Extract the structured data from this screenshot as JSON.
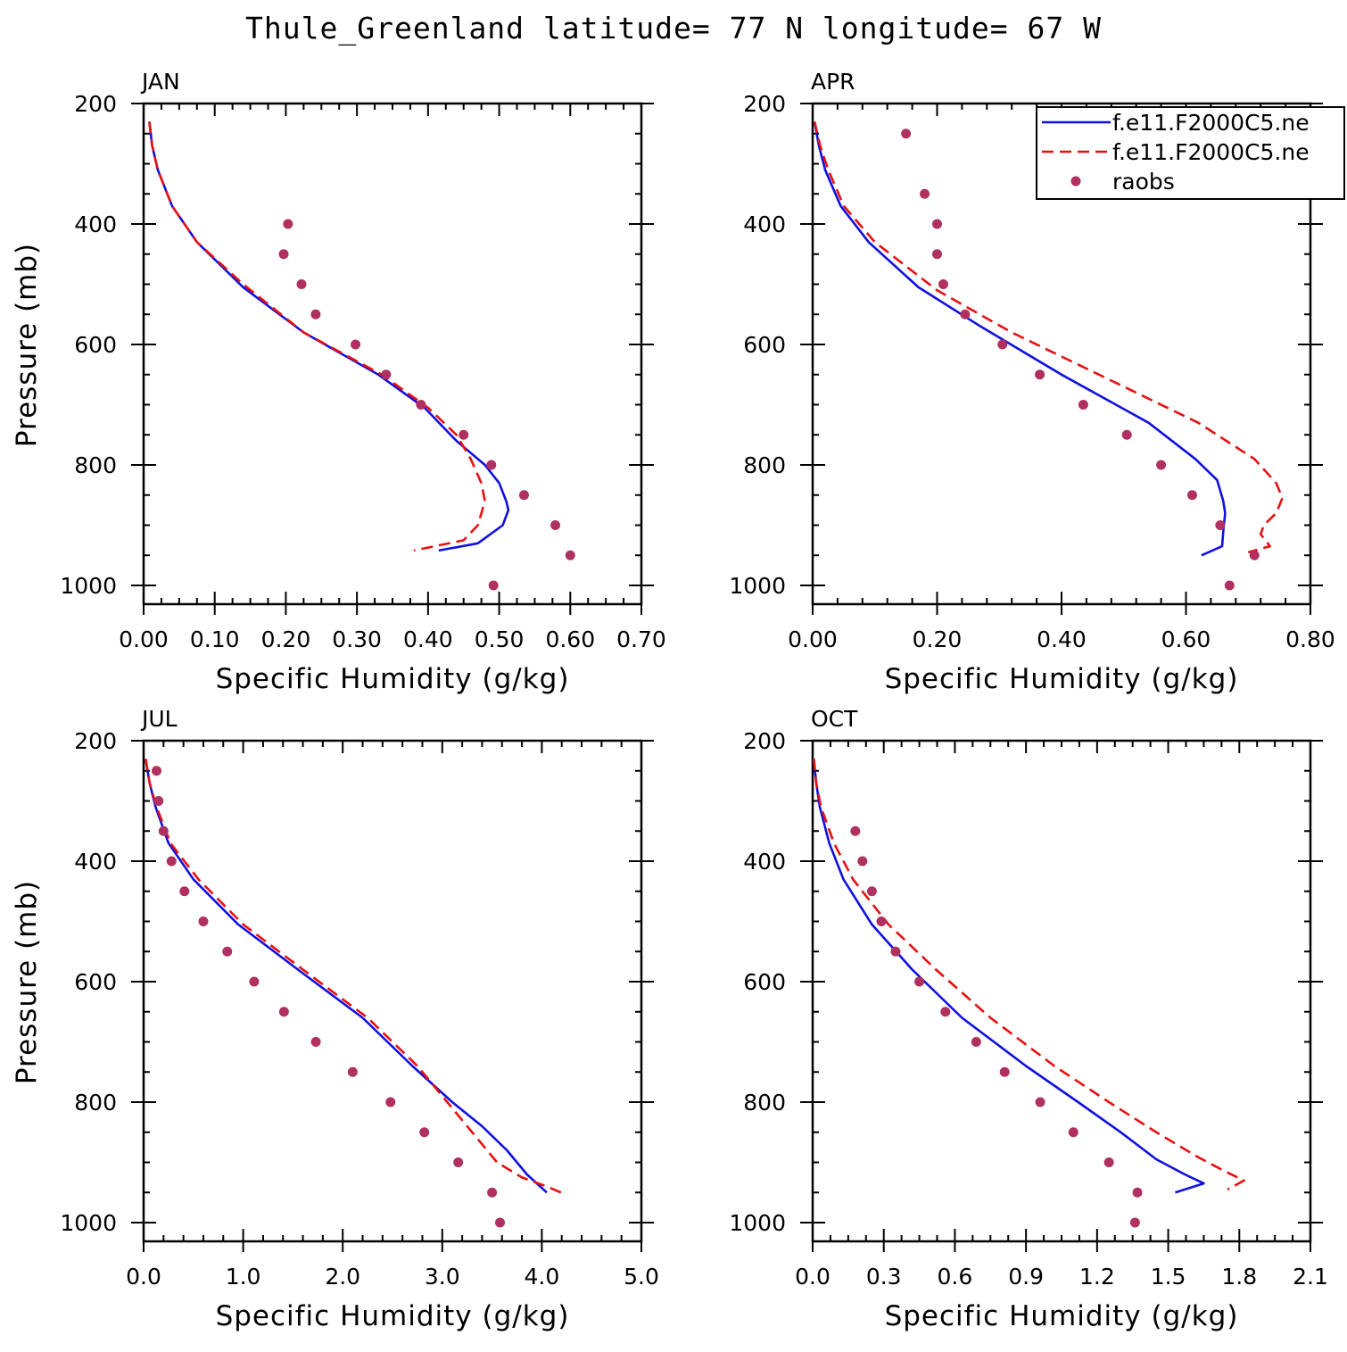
{
  "figure": {
    "title": "Thule_Greenland  latitude= 77 N longitude= 67 W"
  },
  "legend": {
    "entries": [
      {
        "label": "f.e11.F2000C5.ne",
        "style": "solid",
        "color": "#1010e0"
      },
      {
        "label": "f.e11.F2000C5.ne",
        "style": "dashed",
        "color": "#e81010"
      },
      {
        "label": "raobs",
        "style": "dot",
        "color": "#b03060"
      }
    ]
  },
  "chart_data": [
    {
      "type": "line",
      "title": "JAN",
      "xlabel": "Specific Humidity (g/kg)",
      "ylabel": "Pressure (mb)",
      "xlim": [
        0,
        0.7
      ],
      "ylim": [
        200,
        1000
      ],
      "xticks": [
        "0.00",
        "0.10",
        "0.20",
        "0.30",
        "0.40",
        "0.50",
        "0.60",
        "0.70"
      ],
      "yticks": [
        "200",
        "400",
        "600",
        "800",
        "1000"
      ],
      "series": [
        {
          "name": "f.e11.F2000C5.ne (solid)",
          "color": "#1010e0",
          "dash": false,
          "points": [
            [
              0.008,
              230
            ],
            [
              0.012,
              270
            ],
            [
              0.02,
              310
            ],
            [
              0.04,
              370
            ],
            [
              0.075,
              430
            ],
            [
              0.14,
              505
            ],
            [
              0.225,
              580
            ],
            [
              0.33,
              650
            ],
            [
              0.395,
              705
            ],
            [
              0.44,
              760
            ],
            [
              0.48,
              800
            ],
            [
              0.5,
              830
            ],
            [
              0.51,
              860
            ],
            [
              0.513,
              875
            ],
            [
              0.505,
              900
            ],
            [
              0.47,
              930
            ],
            [
              0.415,
              942
            ]
          ]
        },
        {
          "name": "f.e11.F2000C5.ne (dashed)",
          "color": "#e81010",
          "dash": true,
          "points": [
            [
              0.008,
              230
            ],
            [
              0.012,
              270
            ],
            [
              0.02,
              310
            ],
            [
              0.04,
              370
            ],
            [
              0.075,
              430
            ],
            [
              0.14,
              500
            ],
            [
              0.225,
              580
            ],
            [
              0.335,
              650
            ],
            [
              0.4,
              705
            ],
            [
              0.44,
              750
            ],
            [
              0.46,
              790
            ],
            [
              0.475,
              830
            ],
            [
              0.48,
              860
            ],
            [
              0.47,
              900
            ],
            [
              0.45,
              925
            ],
            [
              0.38,
              942
            ]
          ]
        },
        {
          "name": "raobs",
          "color": "#b03060",
          "markers": true,
          "points": [
            [
              0.203,
              400
            ],
            [
              0.197,
              450
            ],
            [
              0.222,
              500
            ],
            [
              0.242,
              550
            ],
            [
              0.298,
              600
            ],
            [
              0.341,
              650
            ],
            [
              0.39,
              700
            ],
            [
              0.45,
              750
            ],
            [
              0.489,
              800
            ],
            [
              0.535,
              850
            ],
            [
              0.579,
              900
            ],
            [
              0.6,
              950
            ],
            [
              0.492,
              1000
            ]
          ]
        }
      ]
    },
    {
      "type": "line",
      "title": "APR",
      "xlabel": "Specific Humidity (g/kg)",
      "ylabel": "",
      "xlim": [
        0,
        0.8
      ],
      "ylim": [
        200,
        1000
      ],
      "xticks": [
        "0.00",
        "0.20",
        "0.40",
        "0.60",
        "0.80"
      ],
      "yticks": [
        "200",
        "400",
        "600",
        "800",
        "1000"
      ],
      "series": [
        {
          "name": "f.e11.F2000C5.ne (solid)",
          "color": "#1010e0",
          "dash": false,
          "points": [
            [
              0.003,
              230
            ],
            [
              0.01,
              270
            ],
            [
              0.02,
              310
            ],
            [
              0.045,
              370
            ],
            [
              0.09,
              430
            ],
            [
              0.17,
              505
            ],
            [
              0.27,
              570
            ],
            [
              0.4,
              650
            ],
            [
              0.54,
              730
            ],
            [
              0.615,
              790
            ],
            [
              0.65,
              825
            ],
            [
              0.66,
              860
            ],
            [
              0.663,
              880
            ],
            [
              0.66,
              910
            ],
            [
              0.658,
              935
            ],
            [
              0.625,
              950
            ]
          ]
        },
        {
          "name": "f.e11.F2000C5.ne (dashed)",
          "color": "#e81010",
          "dash": true,
          "points": [
            [
              0.003,
              230
            ],
            [
              0.012,
              270
            ],
            [
              0.025,
              310
            ],
            [
              0.05,
              370
            ],
            [
              0.1,
              430
            ],
            [
              0.2,
              510
            ],
            [
              0.32,
              580
            ],
            [
              0.48,
              660
            ],
            [
              0.62,
              730
            ],
            [
              0.71,
              790
            ],
            [
              0.745,
              830
            ],
            [
              0.755,
              855
            ],
            [
              0.745,
              880
            ],
            [
              0.725,
              900
            ],
            [
              0.72,
              915
            ],
            [
              0.735,
              935
            ],
            [
              0.7,
              945
            ]
          ]
        },
        {
          "name": "raobs",
          "color": "#b03060",
          "markers": true,
          "points": [
            [
              0.15,
              250
            ],
            [
              0.18,
              350
            ],
            [
              0.2,
              400
            ],
            [
              0.2,
              450
            ],
            [
              0.21,
              500
            ],
            [
              0.245,
              550
            ],
            [
              0.305,
              600
            ],
            [
              0.365,
              650
            ],
            [
              0.435,
              700
            ],
            [
              0.505,
              750
            ],
            [
              0.56,
              800
            ],
            [
              0.61,
              850
            ],
            [
              0.655,
              900
            ],
            [
              0.71,
              950
            ],
            [
              0.67,
              1000
            ]
          ]
        }
      ]
    },
    {
      "type": "line",
      "title": "JUL",
      "xlabel": "Specific Humidity (g/kg)",
      "ylabel": "Pressure (mb)",
      "xlim": [
        0,
        5.0
      ],
      "ylim": [
        200,
        1000
      ],
      "xticks": [
        "0.0",
        "1.0",
        "2.0",
        "3.0",
        "4.0",
        "5.0"
      ],
      "yticks": [
        "200",
        "400",
        "600",
        "800",
        "1000"
      ],
      "series": [
        {
          "name": "f.e11.F2000C5.ne (solid)",
          "color": "#1010e0",
          "dash": false,
          "points": [
            [
              0.02,
              230
            ],
            [
              0.06,
              270
            ],
            [
              0.12,
              310
            ],
            [
              0.25,
              370
            ],
            [
              0.5,
              430
            ],
            [
              0.95,
              505
            ],
            [
              1.55,
              580
            ],
            [
              2.2,
              660
            ],
            [
              2.7,
              740
            ],
            [
              3.1,
              800
            ],
            [
              3.4,
              840
            ],
            [
              3.65,
              880
            ],
            [
              3.85,
              920
            ],
            [
              4.05,
              950
            ]
          ]
        },
        {
          "name": "f.e11.F2000C5.ne (dashed)",
          "color": "#e81010",
          "dash": true,
          "points": [
            [
              0.02,
              230
            ],
            [
              0.06,
              270
            ],
            [
              0.13,
              310
            ],
            [
              0.27,
              370
            ],
            [
              0.55,
              430
            ],
            [
              1.0,
              505
            ],
            [
              1.6,
              580
            ],
            [
              2.25,
              660
            ],
            [
              2.75,
              740
            ],
            [
              3.05,
              800
            ],
            [
              3.3,
              850
            ],
            [
              3.55,
              900
            ],
            [
              3.8,
              925
            ],
            [
              4.05,
              940
            ],
            [
              4.22,
              952
            ]
          ]
        },
        {
          "name": "raobs",
          "color": "#b03060",
          "markers": true,
          "points": [
            [
              0.13,
              250
            ],
            [
              0.15,
              300
            ],
            [
              0.2,
              350
            ],
            [
              0.28,
              400
            ],
            [
              0.41,
              450
            ],
            [
              0.6,
              500
            ],
            [
              0.84,
              550
            ],
            [
              1.11,
              600
            ],
            [
              1.41,
              650
            ],
            [
              1.73,
              700
            ],
            [
              2.1,
              750
            ],
            [
              2.48,
              800
            ],
            [
              2.82,
              850
            ],
            [
              3.16,
              900
            ],
            [
              3.5,
              950
            ],
            [
              3.58,
              1000
            ]
          ]
        }
      ]
    },
    {
      "type": "line",
      "title": "OCT",
      "xlabel": "Specific Humidity (g/kg)",
      "ylabel": "",
      "xlim": [
        0,
        2.1
      ],
      "ylim": [
        200,
        1000
      ],
      "xticks": [
        "0.0",
        "0.3",
        "0.6",
        "0.9",
        "1.2",
        "1.5",
        "1.8",
        "2.1"
      ],
      "yticks": [
        "200",
        "400",
        "600",
        "800",
        "1000"
      ],
      "series": [
        {
          "name": "f.e11.F2000C5.ne (solid)",
          "color": "#1010e0",
          "dash": false,
          "points": [
            [
              0.005,
              230
            ],
            [
              0.015,
              270
            ],
            [
              0.03,
              310
            ],
            [
              0.07,
              370
            ],
            [
              0.13,
              430
            ],
            [
              0.25,
              505
            ],
            [
              0.42,
              580
            ],
            [
              0.63,
              660
            ],
            [
              0.9,
              740
            ],
            [
              1.12,
              800
            ],
            [
              1.3,
              850
            ],
            [
              1.45,
              895
            ],
            [
              1.57,
              920
            ],
            [
              1.65,
              935
            ],
            [
              1.53,
              950
            ]
          ]
        },
        {
          "name": "f.e11.F2000C5.ne (dashed)",
          "color": "#e81010",
          "dash": true,
          "points": [
            [
              0.005,
              230
            ],
            [
              0.015,
              270
            ],
            [
              0.035,
              310
            ],
            [
              0.09,
              370
            ],
            [
              0.17,
              430
            ],
            [
              0.32,
              505
            ],
            [
              0.52,
              580
            ],
            [
              0.75,
              660
            ],
            [
              1.02,
              740
            ],
            [
              1.25,
              800
            ],
            [
              1.45,
              850
            ],
            [
              1.62,
              890
            ],
            [
              1.74,
              915
            ],
            [
              1.82,
              930
            ],
            [
              1.75,
              945
            ]
          ]
        },
        {
          "name": "raobs",
          "color": "#b03060",
          "markers": true,
          "points": [
            [
              0.18,
              350
            ],
            [
              0.21,
              400
            ],
            [
              0.25,
              450
            ],
            [
              0.29,
              500
            ],
            [
              0.35,
              550
            ],
            [
              0.45,
              600
            ],
            [
              0.56,
              650
            ],
            [
              0.69,
              700
            ],
            [
              0.81,
              750
            ],
            [
              0.96,
              800
            ],
            [
              1.1,
              850
            ],
            [
              1.25,
              900
            ],
            [
              1.37,
              950
            ],
            [
              1.36,
              1000
            ]
          ]
        }
      ]
    }
  ]
}
